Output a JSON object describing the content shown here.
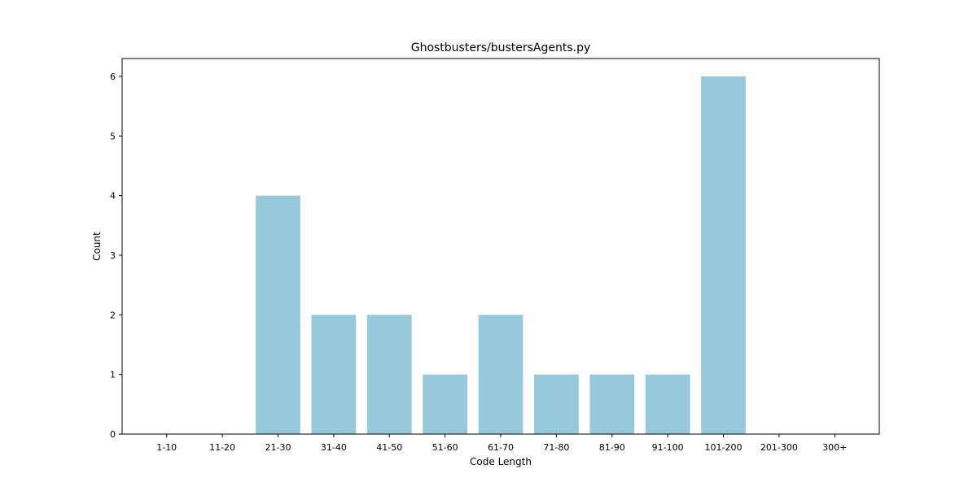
{
  "chart_data": {
    "type": "bar",
    "title": "Ghostbusters/bustersAgents.py",
    "xlabel": "Code Length",
    "ylabel": "Count",
    "categories": [
      "1-10",
      "11-20",
      "21-30",
      "31-40",
      "41-50",
      "51-60",
      "61-70",
      "71-80",
      "81-90",
      "91-100",
      "101-200",
      "201-300",
      "300+"
    ],
    "values": [
      0,
      0,
      4,
      2,
      2,
      1,
      2,
      1,
      1,
      1,
      6,
      0,
      0
    ],
    "ylim": [
      0,
      6.3
    ],
    "yticks": [
      0,
      1,
      2,
      3,
      4,
      5,
      6
    ],
    "grid": false,
    "bar_color": "#96c9dc"
  }
}
